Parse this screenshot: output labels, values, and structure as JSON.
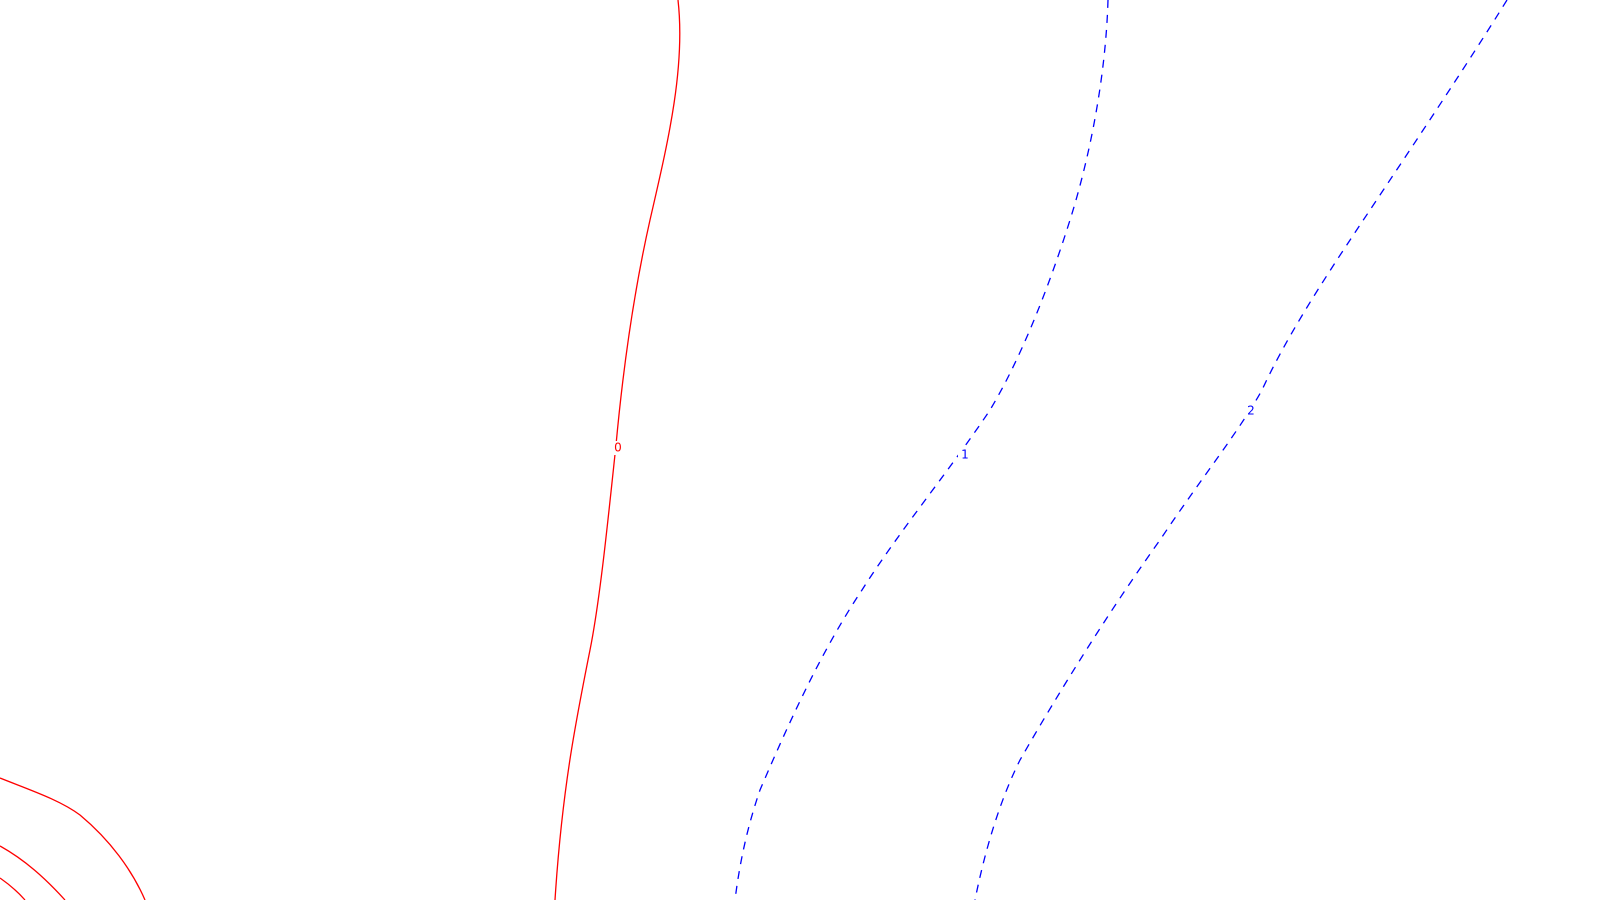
{
  "chart_data": {
    "type": "contour",
    "title": "",
    "xlabel": "",
    "ylabel": "",
    "grid": false,
    "legend": "none",
    "colors": {
      "zero_level": "#ff0000",
      "positive_level": "#0000ff",
      "background": "#ffffff"
    },
    "levels": [
      {
        "value": 0,
        "label": "0",
        "color": "#ff0000",
        "line_style": "solid",
        "has_label": true
      },
      {
        "value": 1,
        "label": "1",
        "color": "#0000ff",
        "line_style": "dashed",
        "has_label": true
      },
      {
        "value": 2,
        "label": "2",
        "color": "#0000ff",
        "line_style": "dashed",
        "has_label": true
      },
      {
        "value": null,
        "label": "",
        "color": "#ff0000",
        "line_style": "solid",
        "has_label": false
      },
      {
        "value": null,
        "label": "",
        "color": "#ff0000",
        "line_style": "solid",
        "has_label": false
      },
      {
        "value": null,
        "label": "",
        "color": "#ff0000",
        "line_style": "solid",
        "has_label": false
      }
    ]
  }
}
